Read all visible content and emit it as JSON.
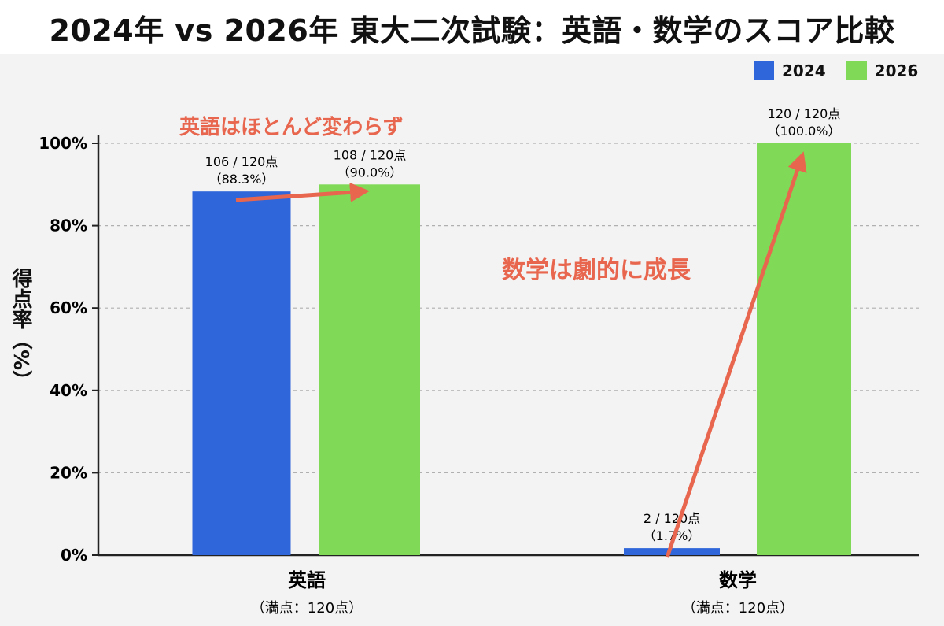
{
  "chart_data": {
    "type": "bar",
    "title": "2024年 vs 2026年 東大二次試験：英語・数学のスコア比較",
    "ylabel": "得点率（%）",
    "ylim": [
      0,
      100
    ],
    "yticks": [
      {
        "value": 0,
        "label": "0%"
      },
      {
        "value": 20,
        "label": "20%"
      },
      {
        "value": 40,
        "label": "40%"
      },
      {
        "value": 60,
        "label": "60%"
      },
      {
        "value": 80,
        "label": "80%"
      },
      {
        "value": 100,
        "label": "100%"
      }
    ],
    "grid": true,
    "legend_position": "top-right",
    "categories": [
      {
        "name": "英語",
        "sublabel": "（満点：120点）"
      },
      {
        "name": "数学",
        "sublabel": "（満点：120点）"
      }
    ],
    "series": [
      {
        "name": "2024",
        "color": "#2f66d9",
        "values": [
          88.3,
          1.7
        ],
        "labels": [
          [
            "106 / 120点",
            "（88.3%）"
          ],
          [
            "2 / 120点",
            "（1.7%）"
          ]
        ]
      },
      {
        "name": "2026",
        "color": "#80d957",
        "values": [
          90.0,
          100.0
        ],
        "labels": [
          [
            "108 / 120点",
            "（90.0%）"
          ],
          [
            "120 / 120点",
            "（100.0%）"
          ]
        ]
      }
    ],
    "annotations": [
      {
        "text": "英語はほとんど変わらず",
        "color": "#e8664e"
      },
      {
        "text": "数学は劇的に成長",
        "color": "#e8664e"
      }
    ]
  }
}
